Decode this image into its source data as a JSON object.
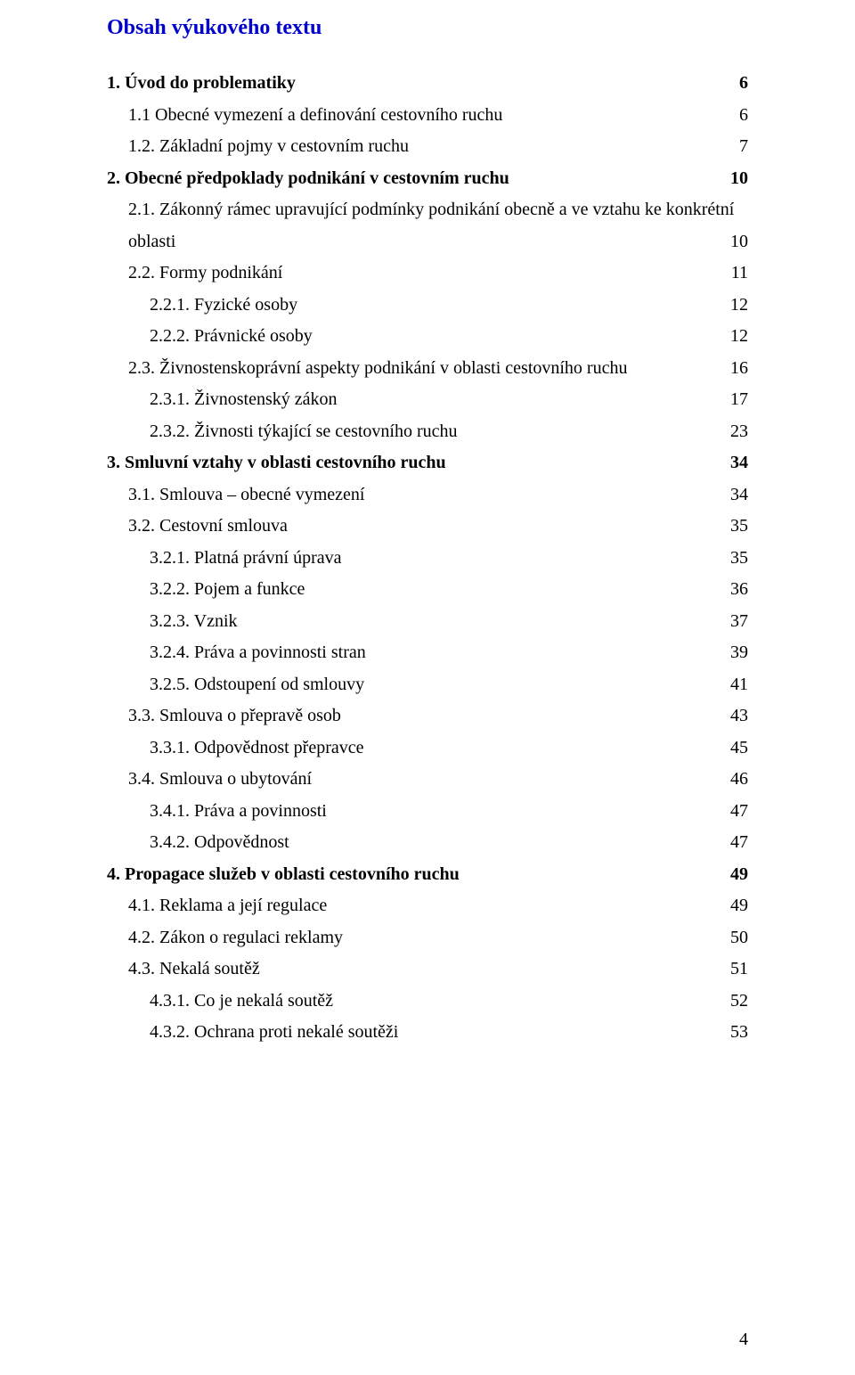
{
  "title": "Obsah výukového textu",
  "title_color": "#0000cd",
  "text_color": "#000000",
  "background_color": "#ffffff",
  "font_family": "Times New Roman",
  "base_fontsize": 20,
  "title_fontsize": 24,
  "page_number": "4",
  "toc": [
    {
      "indent": 0,
      "bold": true,
      "label": "1. Úvod do problematiky",
      "page": "6"
    },
    {
      "indent": 1,
      "bold": false,
      "label": "1.1 Obecné vymezení a definování cestovního ruchu",
      "page": "6"
    },
    {
      "indent": 1,
      "bold": false,
      "label": "1.2. Základní pojmy v cestovním ruchu",
      "page": "7"
    },
    {
      "indent": 0,
      "bold": true,
      "label": "2. Obecné předpoklady podnikání v cestovním ruchu",
      "page": "10"
    },
    {
      "indent": 1,
      "bold": false,
      "label": "2.1. Zákonný rámec upravující podmínky podnikání obecně a ve vztahu ke konkrétní",
      "page": ""
    },
    {
      "indent": 1,
      "bold": false,
      "label": "oblasti",
      "page": "10"
    },
    {
      "indent": 1,
      "bold": false,
      "label": "2.2. Formy podnikání",
      "page": "11"
    },
    {
      "indent": 2,
      "bold": false,
      "label": "2.2.1. Fyzické osoby",
      "page": "12"
    },
    {
      "indent": 2,
      "bold": false,
      "label": "2.2.2. Právnické osoby",
      "page": "12"
    },
    {
      "indent": 1,
      "bold": false,
      "label": "2.3. Živnostenskoprávní aspekty podnikání v oblasti cestovního ruchu",
      "page": "16"
    },
    {
      "indent": 2,
      "bold": false,
      "label": "2.3.1. Živnostenský zákon",
      "page": "17"
    },
    {
      "indent": 2,
      "bold": false,
      "label": "2.3.2. Živnosti týkající se cestovního ruchu",
      "page": "23"
    },
    {
      "indent": 0,
      "bold": true,
      "label": "3. Smluvní vztahy v oblasti cestovního ruchu",
      "page": "34"
    },
    {
      "indent": 1,
      "bold": false,
      "label": "3.1. Smlouva – obecné vymezení",
      "page": "34"
    },
    {
      "indent": 1,
      "bold": false,
      "label": "3.2. Cestovní smlouva",
      "page": "35"
    },
    {
      "indent": 2,
      "bold": false,
      "label": "3.2.1. Platná právní úprava",
      "page": "35"
    },
    {
      "indent": 2,
      "bold": false,
      "label": "3.2.2. Pojem a funkce",
      "page": "36"
    },
    {
      "indent": 2,
      "bold": false,
      "label": "3.2.3. Vznik",
      "page": "37"
    },
    {
      "indent": 2,
      "bold": false,
      "label": "3.2.4. Práva a povinnosti stran",
      "page": "39"
    },
    {
      "indent": 2,
      "bold": false,
      "label": "3.2.5. Odstoupení od smlouvy",
      "page": "41"
    },
    {
      "indent": 1,
      "bold": false,
      "label": "3.3. Smlouva o přepravě osob",
      "page": "43"
    },
    {
      "indent": 2,
      "bold": false,
      "label": "3.3.1. Odpovědnost přepravce",
      "page": "45"
    },
    {
      "indent": 1,
      "bold": false,
      "label": "3.4. Smlouva o ubytování",
      "page": "46"
    },
    {
      "indent": 2,
      "bold": false,
      "label": "3.4.1. Práva a povinnosti",
      "page": "47"
    },
    {
      "indent": 2,
      "bold": false,
      "label": "3.4.2. Odpovědnost",
      "page": "47"
    },
    {
      "indent": 0,
      "bold": true,
      "label": "4. Propagace služeb v oblasti cestovního ruchu",
      "page": "49"
    },
    {
      "indent": 1,
      "bold": false,
      "label": "4.1. Reklama a její regulace",
      "page": "49"
    },
    {
      "indent": 1,
      "bold": false,
      "label": "4.2. Zákon o regulaci reklamy",
      "page": "50"
    },
    {
      "indent": 1,
      "bold": false,
      "label": "4.3. Nekalá soutěž",
      "page": "51"
    },
    {
      "indent": 2,
      "bold": false,
      "label": "4.3.1. Co je nekalá soutěž",
      "page": "52"
    },
    {
      "indent": 2,
      "bold": false,
      "label": "4.3.2. Ochrana proti nekalé soutěži",
      "page": "53"
    }
  ]
}
